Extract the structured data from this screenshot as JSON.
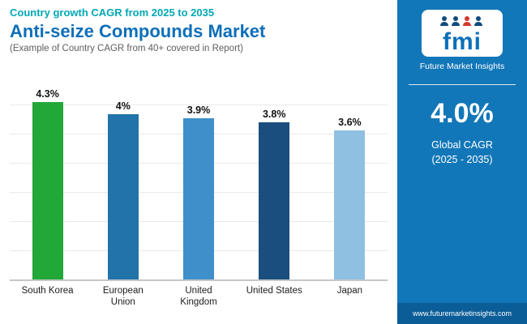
{
  "header": {
    "eyebrow": "Country growth CAGR from 2025 to 2035",
    "title": "Anti-seize Compounds Market",
    "subtitle": "(Example of Country CAGR from 40+ covered in Report)"
  },
  "chart_data": {
    "type": "bar",
    "categories": [
      "South Korea",
      "European Union",
      "United Kingdom",
      "United States",
      "Japan"
    ],
    "values": [
      4.3,
      4.0,
      3.9,
      3.8,
      3.6
    ],
    "value_labels": [
      "4.3%",
      "4%",
      "3.9%",
      "3.8%",
      "3.6%"
    ],
    "colors": [
      "#22a838",
      "#2273a9",
      "#3f8fca",
      "#1a4e7e",
      "#8fc0e2"
    ],
    "title": "Anti-seize Compounds Market",
    "xlabel": "",
    "ylabel": "",
    "ylim": [
      0,
      4.9
    ],
    "grid": true,
    "legend": false
  },
  "sidebar": {
    "logo_text": "fmi",
    "brand": "Future Market Insights",
    "stat_value": "4.0%",
    "stat_label_1": "Global CAGR",
    "stat_label_2": "(2025 - 2035)",
    "website": "www.futuremarketinsights.com",
    "colors": {
      "panel": "#1277b8",
      "footer": "#0b5d97"
    }
  }
}
